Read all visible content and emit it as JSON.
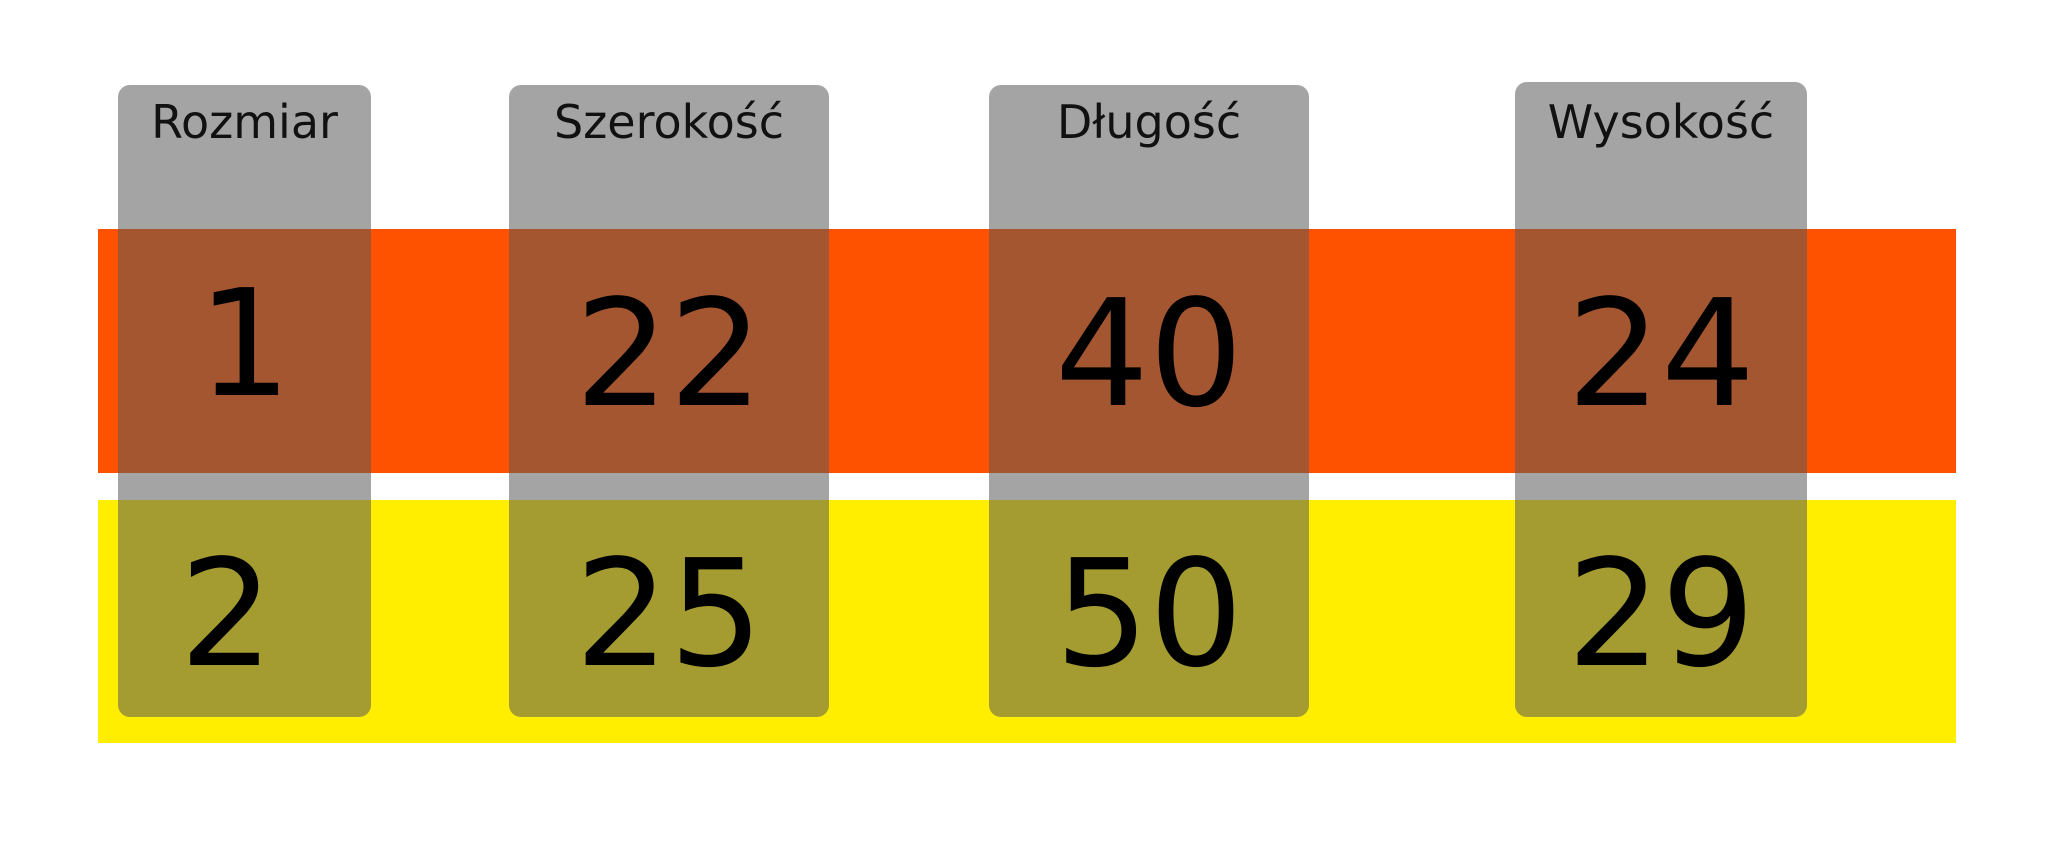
{
  "colors": {
    "row1": "#FF5200",
    "row2": "#FFEE00",
    "column": "#A6A6A6"
  },
  "columns": [
    {
      "header": "Rozmiar",
      "values": [
        "1",
        "2"
      ]
    },
    {
      "header": "Szerokość",
      "values": [
        "22",
        "25"
      ]
    },
    {
      "header": "Długość",
      "values": [
        "40",
        "50"
      ]
    },
    {
      "header": "Wysokość",
      "values": [
        "24",
        "29"
      ]
    }
  ]
}
